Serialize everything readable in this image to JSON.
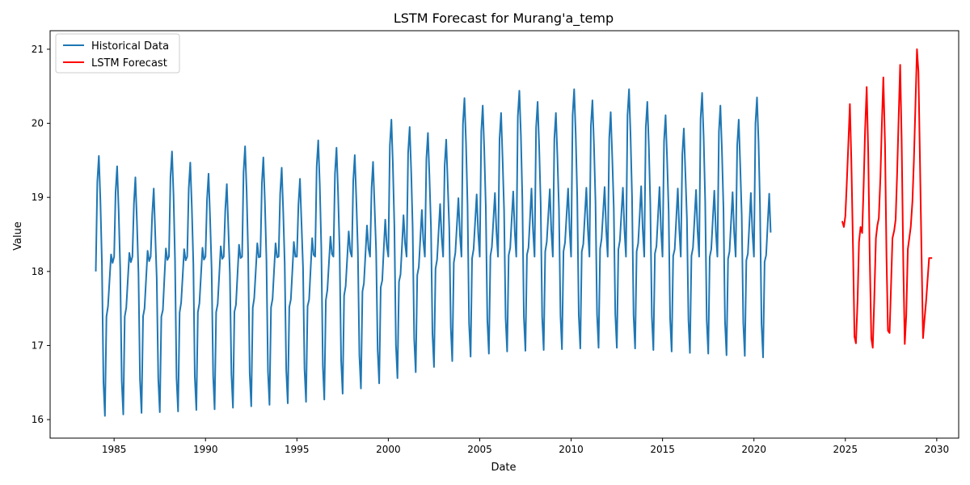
{
  "chart_data": {
    "type": "line",
    "title": "LSTM Forecast for Murang'a_temp",
    "xlabel": "Date",
    "ylabel": "Value",
    "xlim": [
      1981.5,
      2031.2
    ],
    "ylim": [
      15.75,
      21.25
    ],
    "x_ticks": [
      1985,
      1990,
      1995,
      2000,
      2005,
      2010,
      2015,
      2020,
      2025,
      2030
    ],
    "y_ticks": [
      16,
      17,
      18,
      19,
      20,
      21
    ],
    "grid": false,
    "legend_position": "top-left",
    "series": [
      {
        "name": "Historical Data",
        "color": "#1f77b4",
        "start_year": 1984,
        "monthly_pattern": "double-peak seasonal cycle (peaks Mar and Nov, troughs Jul and Dec)",
        "annual_peak": [
          19.56,
          19.42,
          19.27,
          19.12,
          19.62,
          19.47,
          19.32,
          19.18,
          19.69,
          19.54,
          19.4,
          19.25,
          19.77,
          19.67,
          19.57,
          19.48,
          20.05,
          19.95,
          19.87,
          19.78,
          20.34,
          20.24,
          20.14,
          20.44,
          20.29,
          20.14,
          20.46,
          20.31,
          20.15,
          20.46,
          20.29,
          20.11,
          19.93,
          20.41,
          20.24,
          20.05,
          20.35
        ],
        "annual_trough": [
          16.05,
          16.07,
          16.09,
          16.1,
          16.11,
          16.13,
          16.14,
          16.16,
          16.18,
          16.2,
          16.22,
          16.24,
          16.27,
          16.35,
          16.42,
          16.49,
          16.56,
          16.64,
          16.71,
          16.79,
          16.85,
          16.89,
          16.92,
          16.93,
          16.94,
          16.95,
          16.96,
          16.97,
          16.97,
          16.96,
          16.94,
          16.92,
          16.9,
          16.89,
          16.87,
          16.86,
          16.84
        ],
        "annual_secondary_peak": [
          18.23,
          18.25,
          18.28,
          18.31,
          18.3,
          18.32,
          18.34,
          18.36,
          18.38,
          18.38,
          18.4,
          18.45,
          18.47,
          18.54,
          18.62,
          18.7,
          18.76,
          18.83,
          18.91,
          18.99,
          19.04,
          19.06,
          19.08,
          19.12,
          19.11,
          19.12,
          19.13,
          19.14,
          19.13,
          19.15,
          19.14,
          19.12,
          19.1,
          19.09,
          19.07,
          19.06,
          19.05
        ],
        "annual_minor_trough": [
          17.53,
          17.51,
          17.5,
          17.48,
          17.58,
          17.57,
          17.56,
          17.55,
          17.64,
          17.63,
          17.62,
          17.62,
          17.75,
          17.8,
          17.84,
          17.88,
          17.96,
          18.06,
          18.16,
          18.25,
          18.3,
          18.33,
          18.32,
          18.32,
          18.4,
          18.39,
          18.37,
          18.44,
          18.42,
          18.38,
          18.34,
          18.3,
          18.32,
          18.3,
          18.27,
          18.24,
          18.22
        ]
      },
      {
        "name": "LSTM Forecast",
        "color": "#ff0000",
        "start_year": 2024.83,
        "x": [
          2024.83,
          2024.92,
          2025.0,
          2025.08,
          2025.17,
          2025.25,
          2025.33,
          2025.42,
          2025.5,
          2025.58,
          2025.67,
          2025.75,
          2025.83,
          2025.92,
          2026.0,
          2026.08,
          2026.17,
          2026.25,
          2026.33,
          2026.42,
          2026.5,
          2026.58,
          2026.67,
          2026.75,
          2026.83,
          2026.92,
          2027.0,
          2027.08,
          2027.17,
          2027.25,
          2027.33,
          2027.42,
          2027.5,
          2027.58,
          2027.67,
          2027.75,
          2027.83,
          2027.92,
          2028.0,
          2028.08,
          2028.17,
          2028.25,
          2028.33,
          2028.42,
          2028.5,
          2028.58,
          2028.67,
          2028.75,
          2028.83,
          2028.92,
          2029.0,
          2029.08,
          2029.17,
          2029.25,
          2029.33,
          2029.42,
          2029.5,
          2029.58,
          2029.67,
          2029.75
        ],
        "values": [
          18.68,
          18.6,
          18.75,
          19.2,
          19.75,
          20.26,
          19.5,
          18.3,
          17.12,
          17.03,
          17.6,
          18.4,
          18.6,
          18.52,
          19.15,
          19.9,
          20.49,
          19.6,
          18.25,
          17.1,
          16.97,
          17.6,
          18.45,
          18.62,
          18.72,
          19.28,
          20.0,
          20.62,
          19.7,
          18.2,
          17.2,
          17.17,
          17.8,
          18.45,
          18.55,
          18.7,
          19.3,
          20.1,
          20.79,
          19.8,
          18.1,
          17.02,
          17.4,
          18.3,
          18.45,
          18.6,
          18.95,
          19.5,
          20.2,
          21.0,
          20.7,
          19.5,
          18.2,
          17.1,
          17.35,
          17.6,
          17.9,
          18.18,
          18.18,
          18.18
        ]
      }
    ]
  }
}
